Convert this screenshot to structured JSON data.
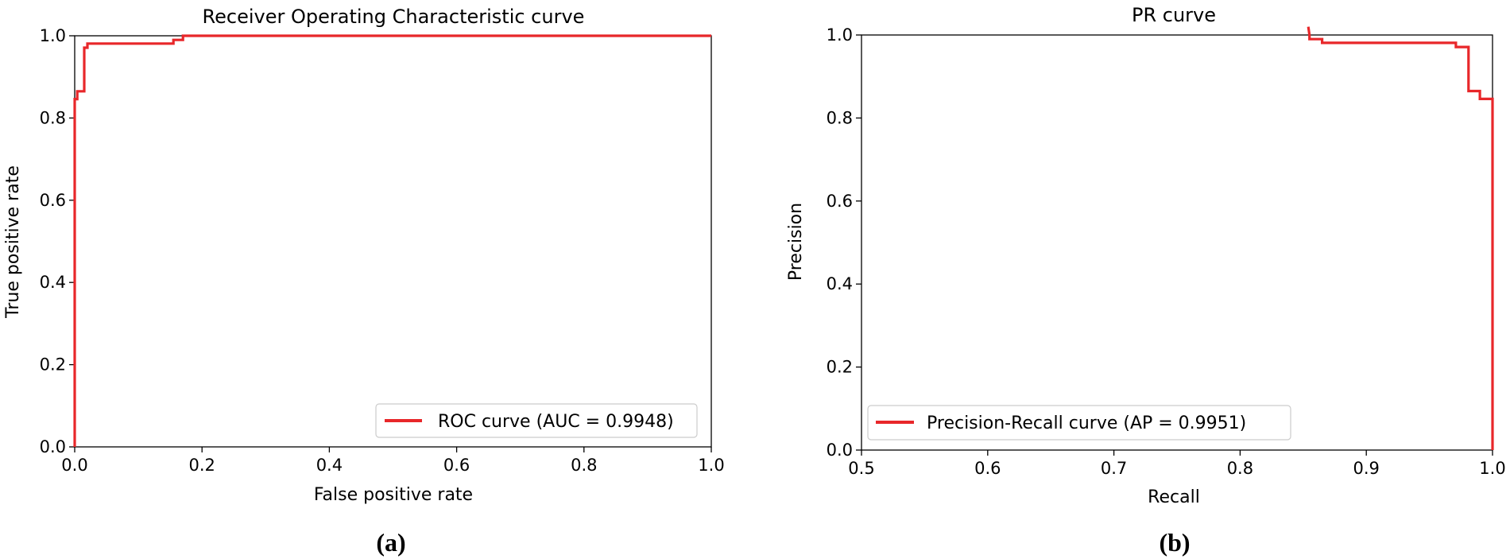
{
  "chart_data": [
    {
      "panel_label": "(a)",
      "type": "line",
      "title": "Receiver Operating Characteristic curve",
      "xlabel": "False positive rate",
      "ylabel": "True positive rate",
      "xlim": [
        0.0,
        1.0
      ],
      "ylim": [
        0.0,
        1.0
      ],
      "xticks": [
        "0.0",
        "0.2",
        "0.4",
        "0.6",
        "0.8",
        "1.0"
      ],
      "yticks": [
        "0.0",
        "0.2",
        "0.4",
        "0.6",
        "0.8",
        "1.0"
      ],
      "grid": false,
      "legend_position": "lower-right",
      "series": [
        {
          "name": "ROC curve (AUC = 0.9948)",
          "color": "#e8272a",
          "x": [
            0.0,
            0.0,
            0.004,
            0.004,
            0.008,
            0.008,
            0.015,
            0.015,
            0.02,
            0.02,
            0.155,
            0.155,
            0.17,
            0.17,
            1.0
          ],
          "y": [
            0.0,
            0.846,
            0.846,
            0.865,
            0.865,
            0.865,
            0.865,
            0.971,
            0.971,
            0.981,
            0.981,
            0.99,
            0.99,
            1.0,
            1.0
          ]
        }
      ]
    },
    {
      "panel_label": "(b)",
      "type": "line",
      "title": "PR curve",
      "xlabel": "Recall",
      "ylabel": "Precision",
      "xlim": [
        0.5,
        1.0
      ],
      "ylim": [
        0.0,
        1.0
      ],
      "xticks": [
        "0.5",
        "0.6",
        "0.7",
        "0.8",
        "0.9",
        "1.0"
      ],
      "yticks": [
        "0.0",
        "0.2",
        "0.4",
        "0.6",
        "0.8",
        "1.0"
      ],
      "grid": false,
      "legend_position": "lower-left",
      "series": [
        {
          "name": "Precision-Recall curve (AP = 0.9951)",
          "color": "#e8272a",
          "x": [
            0.854,
            0.855,
            0.855,
            0.865,
            0.865,
            0.971,
            0.971,
            0.981,
            0.981,
            0.99,
            0.99,
            1.0,
            1.0
          ],
          "y": [
            1.02,
            1.0,
            0.99,
            0.99,
            0.981,
            0.981,
            0.971,
            0.971,
            0.865,
            0.865,
            0.846,
            0.846,
            0.0
          ]
        }
      ]
    }
  ]
}
